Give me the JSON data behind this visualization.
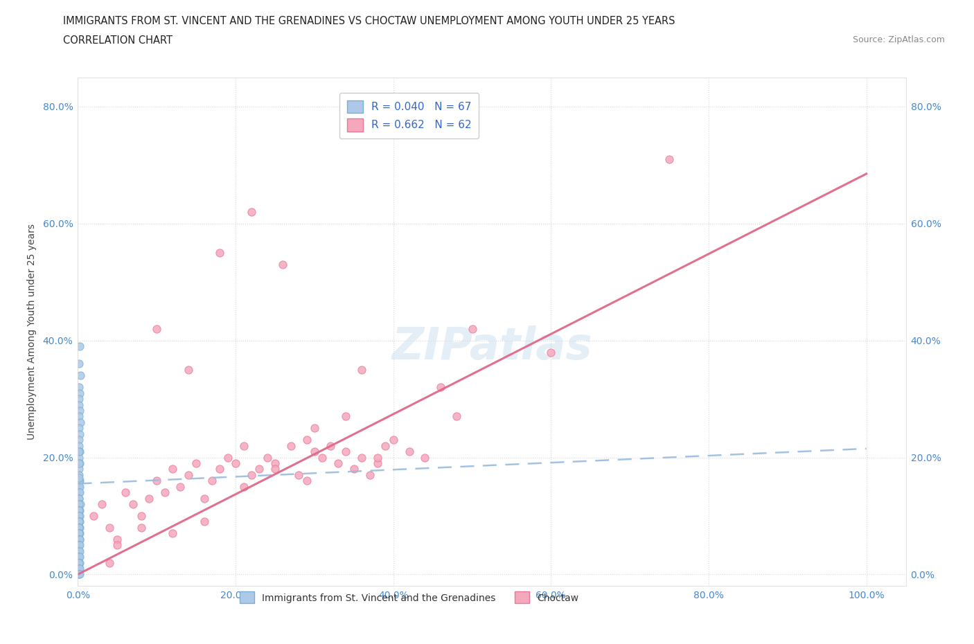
{
  "title_line1": "IMMIGRANTS FROM ST. VINCENT AND THE GRENADINES VS CHOCTAW UNEMPLOYMENT AMONG YOUTH UNDER 25 YEARS",
  "title_line2": "CORRELATION CHART",
  "source_text": "Source: ZipAtlas.com",
  "ylabel": "Unemployment Among Youth under 25 years",
  "xlim": [
    0.0,
    1.05
  ],
  "ylim": [
    -0.02,
    0.85
  ],
  "xticks": [
    0.0,
    0.2,
    0.4,
    0.6,
    0.8,
    1.0
  ],
  "xticklabels": [
    "0.0%",
    "20.0%",
    "40.0%",
    "60.0%",
    "80.0%",
    "100.0%"
  ],
  "yticks": [
    0.0,
    0.2,
    0.4,
    0.6,
    0.8
  ],
  "yticklabels": [
    "0.0%",
    "20.0%",
    "40.0%",
    "60.0%",
    "80.0%"
  ],
  "legend_r1_text": "R = 0.040   N = 67",
  "legend_r2_text": "R = 0.662   N = 62",
  "blue_color": "#adc8e8",
  "pink_color": "#f5a8bc",
  "blue_edge": "#7aafd4",
  "pink_edge": "#e87898",
  "trend_blue_color": "#99bbdd",
  "trend_pink_color": "#e06888",
  "watermark_color": "#cce0f0",
  "bg_color": "#ffffff",
  "grid_color": "#cccccc",
  "tick_color": "#4488cc",
  "blue_x": [
    0.002,
    0.001,
    0.003,
    0.001,
    0.002,
    0.001,
    0.001,
    0.002,
    0.001,
    0.003,
    0.001,
    0.002,
    0.001,
    0.001,
    0.002,
    0.001,
    0.002,
    0.001,
    0.001,
    0.002,
    0.001,
    0.001,
    0.002,
    0.001,
    0.002,
    0.001,
    0.001,
    0.003,
    0.001,
    0.002,
    0.001,
    0.001,
    0.002,
    0.001,
    0.001,
    0.002,
    0.001,
    0.002,
    0.001,
    0.001,
    0.002,
    0.001,
    0.001,
    0.002,
    0.001,
    0.002,
    0.001,
    0.001,
    0.002,
    0.001,
    0.001,
    0.002,
    0.001,
    0.001,
    0.002,
    0.001,
    0.002,
    0.001,
    0.001,
    0.001,
    0.002,
    0.001,
    0.001,
    0.002,
    0.001,
    0.001,
    0.001
  ],
  "blue_y": [
    0.39,
    0.36,
    0.34,
    0.32,
    0.31,
    0.3,
    0.29,
    0.28,
    0.27,
    0.26,
    0.25,
    0.24,
    0.23,
    0.22,
    0.21,
    0.2,
    0.19,
    0.18,
    0.17,
    0.16,
    0.16,
    0.15,
    0.15,
    0.14,
    0.14,
    0.13,
    0.13,
    0.12,
    0.12,
    0.11,
    0.11,
    0.11,
    0.1,
    0.1,
    0.09,
    0.09,
    0.09,
    0.08,
    0.08,
    0.08,
    0.07,
    0.07,
    0.07,
    0.06,
    0.06,
    0.06,
    0.05,
    0.05,
    0.05,
    0.04,
    0.04,
    0.04,
    0.03,
    0.03,
    0.03,
    0.02,
    0.02,
    0.02,
    0.01,
    0.01,
    0.01,
    0.0,
    0.0,
    0.0,
    0.165,
    0.19,
    0.21
  ],
  "pink_x": [
    0.02,
    0.03,
    0.04,
    0.05,
    0.06,
    0.07,
    0.08,
    0.09,
    0.1,
    0.11,
    0.12,
    0.13,
    0.14,
    0.15,
    0.16,
    0.17,
    0.18,
    0.19,
    0.2,
    0.21,
    0.22,
    0.23,
    0.24,
    0.25,
    0.27,
    0.28,
    0.29,
    0.3,
    0.31,
    0.32,
    0.33,
    0.34,
    0.35,
    0.36,
    0.37,
    0.38,
    0.39,
    0.4,
    0.42,
    0.44,
    0.46,
    0.48,
    0.36,
    0.1,
    0.14,
    0.18,
    0.22,
    0.26,
    0.3,
    0.34,
    0.38,
    0.05,
    0.08,
    0.12,
    0.16,
    0.21,
    0.25,
    0.29,
    0.04,
    0.6,
    0.75,
    0.5
  ],
  "pink_y": [
    0.1,
    0.12,
    0.08,
    0.06,
    0.14,
    0.12,
    0.1,
    0.13,
    0.16,
    0.14,
    0.18,
    0.15,
    0.17,
    0.19,
    0.13,
    0.16,
    0.18,
    0.2,
    0.19,
    0.22,
    0.17,
    0.18,
    0.2,
    0.19,
    0.22,
    0.17,
    0.23,
    0.21,
    0.2,
    0.22,
    0.19,
    0.21,
    0.18,
    0.2,
    0.17,
    0.19,
    0.22,
    0.23,
    0.21,
    0.2,
    0.32,
    0.27,
    0.35,
    0.42,
    0.35,
    0.55,
    0.62,
    0.53,
    0.25,
    0.27,
    0.2,
    0.05,
    0.08,
    0.07,
    0.09,
    0.15,
    0.18,
    0.16,
    0.02,
    0.38,
    0.71,
    0.42
  ],
  "blue_trend_x0": 0.0,
  "blue_trend_x1": 1.0,
  "blue_trend_y0": 0.155,
  "blue_trend_y1": 0.215,
  "pink_trend_x0": 0.0,
  "pink_trend_x1": 1.0,
  "pink_trend_y0": 0.0,
  "pink_trend_y1": 0.685
}
